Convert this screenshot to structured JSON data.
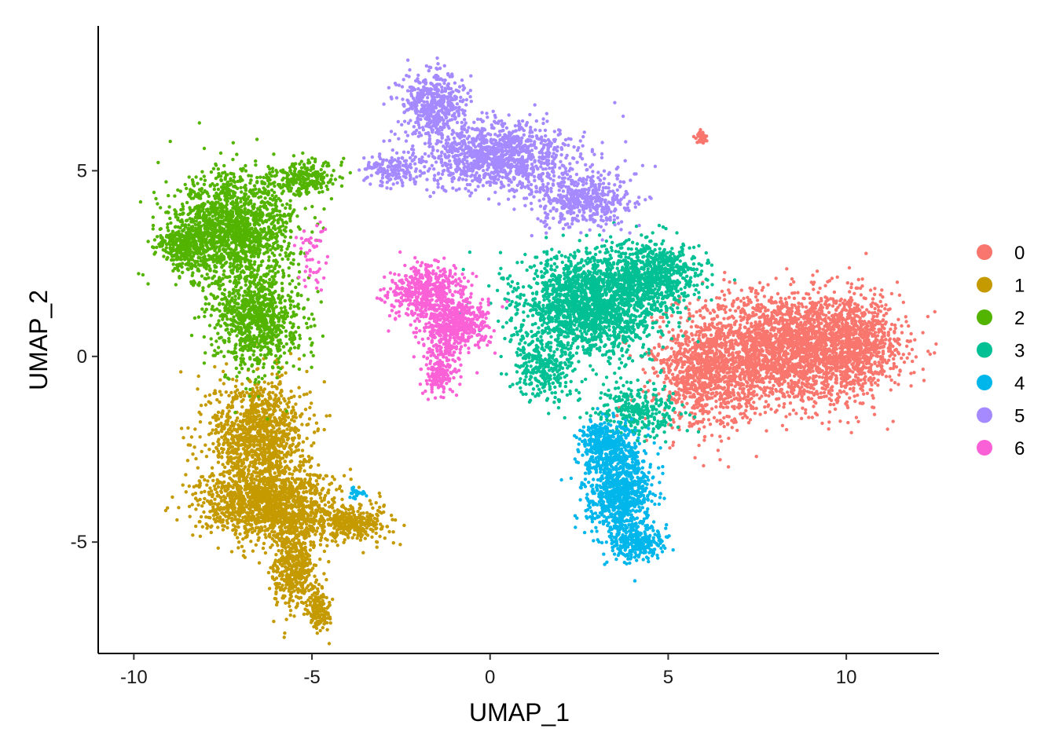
{
  "chart_data": {
    "type": "scatter",
    "title": "",
    "xlabel": "UMAP_1",
    "ylabel": "UMAP_2",
    "xlim": [
      -11,
      12.6
    ],
    "ylim": [
      -8,
      8.9
    ],
    "x_ticks": [
      -10,
      -5,
      0,
      5,
      10
    ],
    "x_tick_labels": [
      "-10",
      "-5",
      "0",
      "5",
      "10"
    ],
    "y_ticks": [
      -5,
      0,
      5
    ],
    "y_tick_labels": [
      "-5",
      "0",
      "5"
    ],
    "grid": false,
    "legend_position": "right",
    "series": [
      {
        "name": "0",
        "color": "#F8766D",
        "regions": [
          {
            "cx": 8.2,
            "cy": 0.2,
            "sx": 1.9,
            "sy": 1.0,
            "n": 2600
          },
          {
            "cx": 10.2,
            "cy": 0.3,
            "sx": 0.9,
            "sy": 0.8,
            "n": 700
          },
          {
            "cx": 6.0,
            "cy": -0.6,
            "sx": 0.9,
            "sy": 0.9,
            "n": 700
          },
          {
            "cx": 5.95,
            "cy": 5.9,
            "sx": 0.1,
            "sy": 0.1,
            "n": 40
          }
        ]
      },
      {
        "name": "1",
        "color": "#C49A00",
        "regions": [
          {
            "cx": -6.5,
            "cy": -2.2,
            "sx": 0.9,
            "sy": 1.1,
            "n": 1200
          },
          {
            "cx": -6.2,
            "cy": -4.0,
            "sx": 1.3,
            "sy": 0.6,
            "n": 1300
          },
          {
            "cx": -5.5,
            "cy": -5.6,
            "sx": 0.4,
            "sy": 0.8,
            "n": 500
          },
          {
            "cx": -4.8,
            "cy": -6.8,
            "sx": 0.2,
            "sy": 0.4,
            "n": 160
          },
          {
            "cx": -3.8,
            "cy": -4.5,
            "sx": 0.7,
            "sy": 0.3,
            "n": 300
          }
        ]
      },
      {
        "name": "2",
        "color": "#53B400",
        "regions": [
          {
            "cx": -7.2,
            "cy": 3.4,
            "sx": 1.1,
            "sy": 1.0,
            "n": 1600
          },
          {
            "cx": -6.5,
            "cy": 1.0,
            "sx": 0.8,
            "sy": 0.9,
            "n": 900
          },
          {
            "cx": -8.6,
            "cy": 3.0,
            "sx": 0.5,
            "sy": 0.4,
            "n": 300
          },
          {
            "cx": -5.2,
            "cy": 4.8,
            "sx": 0.6,
            "sy": 0.3,
            "n": 250
          }
        ]
      },
      {
        "name": "3",
        "color": "#00C094",
        "regions": [
          {
            "cx": 2.8,
            "cy": 1.4,
            "sx": 1.3,
            "sy": 0.9,
            "n": 1900
          },
          {
            "cx": 4.6,
            "cy": 2.2,
            "sx": 0.9,
            "sy": 0.6,
            "n": 700
          },
          {
            "cx": 1.5,
            "cy": -0.3,
            "sx": 0.6,
            "sy": 0.6,
            "n": 300
          },
          {
            "cx": 4.2,
            "cy": -1.5,
            "sx": 0.8,
            "sy": 0.5,
            "n": 300
          }
        ]
      },
      {
        "name": "4",
        "color": "#00B6EB",
        "regions": [
          {
            "cx": 3.6,
            "cy": -3.6,
            "sx": 0.6,
            "sy": 0.9,
            "n": 1000
          },
          {
            "cx": 3.2,
            "cy": -2.3,
            "sx": 0.5,
            "sy": 0.4,
            "n": 300
          },
          {
            "cx": 4.2,
            "cy": -5.0,
            "sx": 0.5,
            "sy": 0.3,
            "n": 250
          },
          {
            "cx": -3.7,
            "cy": -3.7,
            "sx": 0.15,
            "sy": 0.1,
            "n": 30
          }
        ]
      },
      {
        "name": "5",
        "color": "#A58AFF",
        "regions": [
          {
            "cx": 0.2,
            "cy": 5.4,
            "sx": 1.4,
            "sy": 0.6,
            "n": 1200
          },
          {
            "cx": -1.6,
            "cy": 6.8,
            "sx": 0.6,
            "sy": 0.6,
            "n": 500
          },
          {
            "cx": 2.6,
            "cy": 4.2,
            "sx": 0.9,
            "sy": 0.5,
            "n": 500
          },
          {
            "cx": -2.7,
            "cy": 5.0,
            "sx": 0.6,
            "sy": 0.3,
            "n": 160
          }
        ]
      },
      {
        "name": "6",
        "color": "#FB61D7",
        "regions": [
          {
            "cx": -1.8,
            "cy": 1.7,
            "sx": 0.7,
            "sy": 0.5,
            "n": 500
          },
          {
            "cx": -1.0,
            "cy": 0.8,
            "sx": 0.6,
            "sy": 0.5,
            "n": 500
          },
          {
            "cx": -1.4,
            "cy": -0.4,
            "sx": 0.3,
            "sy": 0.5,
            "n": 200
          },
          {
            "cx": -5.0,
            "cy": 2.8,
            "sx": 0.3,
            "sy": 0.6,
            "n": 50
          }
        ]
      }
    ]
  }
}
